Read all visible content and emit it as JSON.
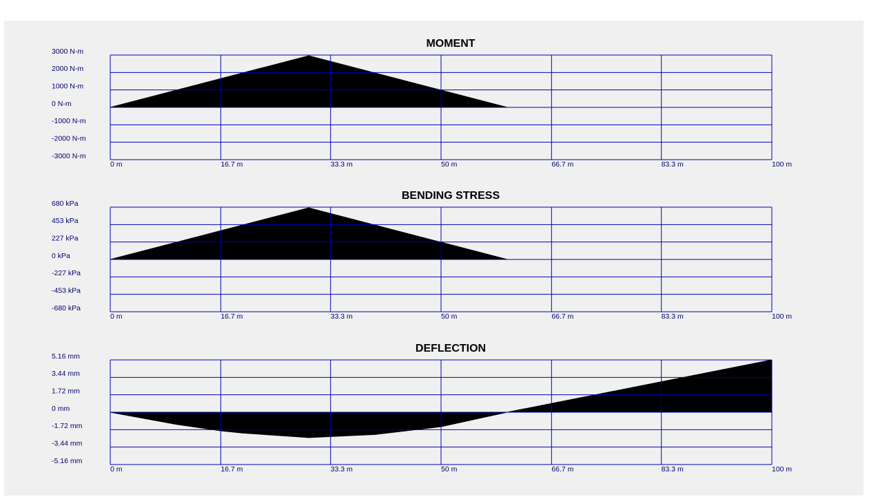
{
  "chart_data": [
    {
      "type": "area",
      "title": "MOMENT",
      "color": "#000000",
      "grid": true,
      "x": [
        0,
        30,
        60,
        100
      ],
      "values": [
        0,
        2960,
        0,
        0
      ],
      "xlim": [
        0,
        100
      ],
      "xticks": [
        {
          "value": 0,
          "label": "0 m"
        },
        {
          "value": 16.7,
          "label": "16.7 m"
        },
        {
          "value": 33.3,
          "label": "33.3 m"
        },
        {
          "value": 50,
          "label": "50 m"
        },
        {
          "value": 66.7,
          "label": "66.7 m"
        },
        {
          "value": 83.3,
          "label": "83.3 m"
        },
        {
          "value": 100,
          "label": "100 m"
        }
      ],
      "ylim": [
        -3000,
        3000
      ],
      "yticks": [
        {
          "value": 3000,
          "label": "3000 N-m"
        },
        {
          "value": 2000,
          "label": "2000 N-m"
        },
        {
          "value": 1000,
          "label": "1000 N-m"
        },
        {
          "value": 0,
          "label": "0 N-m"
        },
        {
          "value": -1000,
          "label": "-1000 N-m"
        },
        {
          "value": -2000,
          "label": "-2000 N-m"
        },
        {
          "value": -3000,
          "label": "-3000 N-m"
        }
      ]
    },
    {
      "type": "area",
      "title": "BENDING STRESS",
      "color": "#000000",
      "grid": true,
      "x": [
        0,
        30,
        60,
        100
      ],
      "values": [
        0,
        671,
        0,
        0
      ],
      "xlim": [
        0,
        100
      ],
      "xticks": [
        {
          "value": 0,
          "label": "0 m"
        },
        {
          "value": 16.7,
          "label": "16.7 m"
        },
        {
          "value": 33.3,
          "label": "33.3 m"
        },
        {
          "value": 50,
          "label": "50 m"
        },
        {
          "value": 66.7,
          "label": "66.7 m"
        },
        {
          "value": 83.3,
          "label": "83.3 m"
        },
        {
          "value": 100,
          "label": "100 m"
        }
      ],
      "ylim": [
        -680,
        680
      ],
      "yticks": [
        {
          "value": 680,
          "label": "680 kPa"
        },
        {
          "value": 453,
          "label": "453 kPa"
        },
        {
          "value": 227,
          "label": "227 kPa"
        },
        {
          "value": 0,
          "label": "0 kPa"
        },
        {
          "value": -227,
          "label": "-227 kPa"
        },
        {
          "value": -453,
          "label": "-453 kPa"
        },
        {
          "value": -680,
          "label": "-680 kPa"
        }
      ]
    },
    {
      "type": "area",
      "title": "DEFLECTION",
      "color": "#000000",
      "grid": true,
      "x": [
        0,
        10,
        16.7,
        20,
        30,
        40,
        50,
        60,
        70,
        80,
        90,
        100
      ],
      "values": [
        0,
        -1.2,
        -1.83,
        -2.05,
        -2.5,
        -2.2,
        -1.43,
        0,
        1.29,
        2.58,
        3.87,
        5.16
      ],
      "xlim": [
        0,
        100
      ],
      "xticks": [
        {
          "value": 0,
          "label": "0 m"
        },
        {
          "value": 16.7,
          "label": "16.7 m"
        },
        {
          "value": 33.3,
          "label": "33.3 m"
        },
        {
          "value": 50,
          "label": "50 m"
        },
        {
          "value": 66.7,
          "label": "66.7 m"
        },
        {
          "value": 83.3,
          "label": "83.3 m"
        },
        {
          "value": 100,
          "label": "100 m"
        }
      ],
      "ylim": [
        -5.16,
        5.16
      ],
      "yticks": [
        {
          "value": 5.16,
          "label": "5.16 mm"
        },
        {
          "value": 3.44,
          "label": "3.44 mm"
        },
        {
          "value": 1.72,
          "label": "1.72 mm"
        },
        {
          "value": 0,
          "label": "0 mm"
        },
        {
          "value": -1.72,
          "label": "-1.72 mm"
        },
        {
          "value": -3.44,
          "label": "-3.44 mm"
        },
        {
          "value": -5.16,
          "label": "-5.16 mm"
        }
      ]
    }
  ]
}
